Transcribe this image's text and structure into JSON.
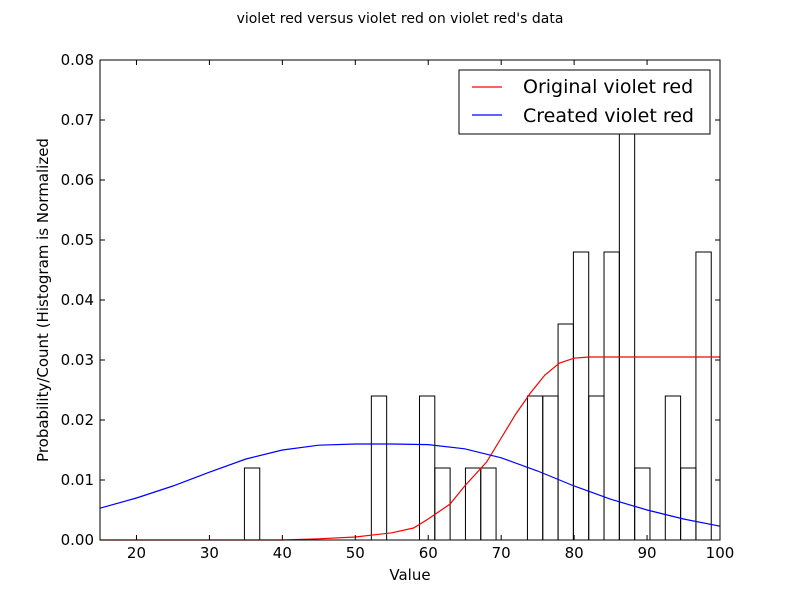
{
  "chart_data": {
    "type": "bar",
    "title": "violet red versus violet red on violet red's data",
    "xlabel": "Value",
    "ylabel": "Probability/Count (Histogram is Normalized",
    "xlim": [
      15,
      100
    ],
    "ylim": [
      0,
      0.08
    ],
    "x_ticks": [
      "20",
      "30",
      "40",
      "50",
      "60",
      "70",
      "80",
      "90",
      "100"
    ],
    "y_ticks": [
      "0.00",
      "0.01",
      "0.02",
      "0.03",
      "0.04",
      "0.05",
      "0.06",
      "0.07",
      "0.08"
    ],
    "grid": false,
    "legend_position": "top-right",
    "histogram": {
      "bin_width": 2.1,
      "bins": [
        {
          "start": 34.8,
          "value": 0.012
        },
        {
          "start": 52.2,
          "value": 0.024
        },
        {
          "start": 58.8,
          "value": 0.024
        },
        {
          "start": 60.9,
          "value": 0.012
        },
        {
          "start": 65.1,
          "value": 0.012
        },
        {
          "start": 67.2,
          "value": 0.012
        },
        {
          "start": 73.6,
          "value": 0.024
        },
        {
          "start": 75.7,
          "value": 0.024
        },
        {
          "start": 77.8,
          "value": 0.036
        },
        {
          "start": 79.9,
          "value": 0.048
        },
        {
          "start": 82.0,
          "value": 0.024
        },
        {
          "start": 84.1,
          "value": 0.048
        },
        {
          "start": 86.2,
          "value": 0.072
        },
        {
          "start": 88.3,
          "value": 0.012
        },
        {
          "start": 92.5,
          "value": 0.024
        },
        {
          "start": 94.6,
          "value": 0.012
        },
        {
          "start": 96.7,
          "value": 0.048
        }
      ]
    },
    "series": [
      {
        "name": "Original violet red",
        "color": "#ff0000",
        "x": [
          15,
          30,
          40,
          45,
          50,
          55,
          58,
          60,
          63,
          65,
          68,
          70,
          72,
          74,
          76,
          78,
          80,
          82,
          84,
          90,
          100
        ],
        "values": [
          0.0,
          0.0,
          0.0,
          0.0002,
          0.0005,
          0.0012,
          0.002,
          0.0035,
          0.006,
          0.009,
          0.013,
          0.017,
          0.021,
          0.0245,
          0.0275,
          0.0295,
          0.0303,
          0.0305,
          0.0305,
          0.0305,
          0.0305
        ]
      },
      {
        "name": "Created violet red",
        "color": "#0000ff",
        "x": [
          15,
          20,
          25,
          30,
          35,
          40,
          45,
          50,
          55,
          60,
          65,
          70,
          75,
          80,
          85,
          90,
          95,
          100
        ],
        "values": [
          0.0053,
          0.007,
          0.009,
          0.0113,
          0.0135,
          0.015,
          0.0158,
          0.016,
          0.016,
          0.0159,
          0.0152,
          0.0137,
          0.0115,
          0.009,
          0.0068,
          0.005,
          0.0035,
          0.0023
        ]
      }
    ]
  }
}
